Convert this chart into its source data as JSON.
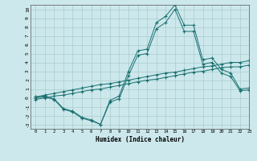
{
  "xlabel": "Humidex (Indice chaleur)",
  "bg_color": "#cce8ec",
  "grid_color": "#aacccc",
  "line_color": "#1a7070",
  "xlim": [
    -0.5,
    23
  ],
  "ylim": [
    -3.5,
    10.5
  ],
  "xticks": [
    0,
    1,
    2,
    3,
    4,
    5,
    6,
    7,
    8,
    9,
    10,
    11,
    12,
    13,
    14,
    15,
    16,
    17,
    18,
    19,
    20,
    21,
    22,
    23
  ],
  "yticks": [
    -3,
    -2,
    -1,
    0,
    1,
    2,
    3,
    4,
    5,
    6,
    7,
    8,
    9,
    10
  ],
  "line1_x": [
    0,
    1,
    2,
    3,
    4,
    5,
    6,
    7,
    8,
    9,
    10,
    11,
    12,
    13,
    14,
    15,
    16,
    17,
    18,
    19,
    20,
    21,
    22,
    23
  ],
  "line1_y": [
    0.1,
    0.2,
    -0.1,
    -1.2,
    -1.5,
    -2.2,
    -2.5,
    -3.0,
    -0.3,
    0.2,
    3.0,
    5.3,
    5.5,
    8.5,
    9.2,
    10.5,
    8.2,
    8.2,
    4.3,
    4.5,
    3.2,
    2.8,
    1.0,
    1.1
  ],
  "line2_x": [
    0,
    1,
    2,
    3,
    4,
    5,
    6,
    7,
    8,
    9,
    10,
    11,
    12,
    13,
    14,
    15,
    16,
    17,
    18,
    19,
    20,
    21,
    22,
    23
  ],
  "line2_y": [
    0.0,
    0.1,
    -0.2,
    -1.3,
    -1.6,
    -2.3,
    -2.6,
    -3.0,
    -0.5,
    -0.1,
    2.5,
    4.8,
    5.0,
    7.8,
    8.5,
    10.0,
    7.5,
    7.5,
    3.8,
    4.0,
    2.8,
    2.4,
    0.8,
    0.9
  ],
  "line3_x": [
    0,
    1,
    2,
    3,
    4,
    5,
    6,
    7,
    8,
    9,
    10,
    11,
    12,
    13,
    14,
    15,
    16,
    17,
    18,
    19,
    20,
    21,
    22,
    23
  ],
  "line3_y": [
    0.1,
    0.3,
    0.5,
    0.7,
    0.9,
    1.1,
    1.3,
    1.5,
    1.6,
    1.8,
    2.0,
    2.2,
    2.4,
    2.6,
    2.8,
    2.9,
    3.1,
    3.3,
    3.5,
    3.6,
    3.8,
    4.0,
    4.0,
    4.2
  ],
  "line4_x": [
    0,
    1,
    2,
    3,
    4,
    5,
    6,
    7,
    8,
    9,
    10,
    11,
    12,
    13,
    14,
    15,
    16,
    17,
    18,
    19,
    20,
    21,
    22,
    23
  ],
  "line4_y": [
    -0.2,
    0.0,
    0.2,
    0.3,
    0.5,
    0.7,
    0.9,
    1.0,
    1.2,
    1.4,
    1.6,
    1.8,
    2.0,
    2.1,
    2.3,
    2.5,
    2.7,
    2.9,
    3.0,
    3.2,
    3.4,
    3.5,
    3.5,
    3.7
  ]
}
